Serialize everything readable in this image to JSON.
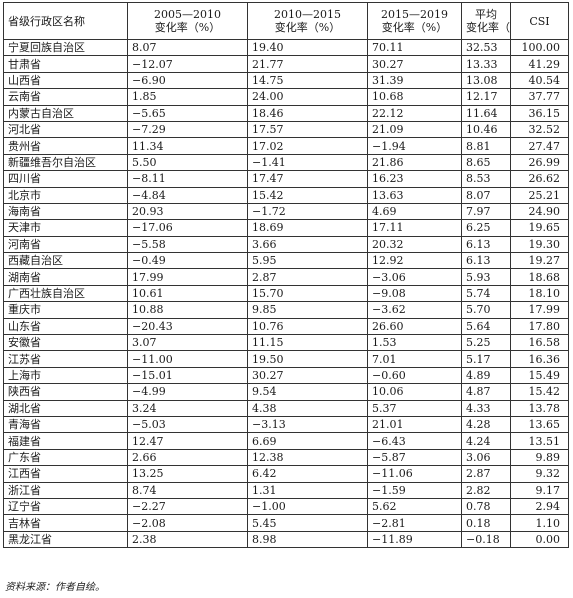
{
  "table": {
    "headers": {
      "region": "省级行政区名称",
      "p1_line1": "2005—2010",
      "p1_line2": "变化率（%）",
      "p2_line1": "2010—2015",
      "p2_line2": "变化率（%）",
      "p3_line1": "2015—2019",
      "p3_line2": "变化率（%）",
      "avg_line1": "平均",
      "avg_line2": "变化率（%）",
      "csi": "CSI"
    },
    "rows": [
      [
        "宁夏回族自治区",
        "8.07",
        "19.40",
        "70.11",
        "32.53",
        "100.00"
      ],
      [
        "甘肃省",
        "−12.07",
        "21.77",
        "30.27",
        "13.33",
        "41.29"
      ],
      [
        "山西省",
        "−6.90",
        "14.75",
        "31.39",
        "13.08",
        "40.54"
      ],
      [
        "云南省",
        "1.85",
        "24.00",
        "10.68",
        "12.17",
        "37.77"
      ],
      [
        "内蒙古自治区",
        "−5.65",
        "18.46",
        "22.12",
        "11.64",
        "36.15"
      ],
      [
        "河北省",
        "−7.29",
        "17.57",
        "21.09",
        "10.46",
        "32.52"
      ],
      [
        "贵州省",
        "11.34",
        "17.02",
        "−1.94",
        "8.81",
        "27.47"
      ],
      [
        "新疆维吾尔自治区",
        "5.50",
        "−1.41",
        "21.86",
        "8.65",
        "26.99"
      ],
      [
        "四川省",
        "−8.11",
        "17.47",
        "16.23",
        "8.53",
        "26.62"
      ],
      [
        "北京市",
        "−4.84",
        "15.42",
        "13.63",
        "8.07",
        "25.21"
      ],
      [
        "海南省",
        "20.93",
        "−1.72",
        "4.69",
        "7.97",
        "24.90"
      ],
      [
        "天津市",
        "−17.06",
        "18.69",
        "17.11",
        "6.25",
        "19.65"
      ],
      [
        "河南省",
        "−5.58",
        "3.66",
        "20.32",
        "6.13",
        "19.30"
      ],
      [
        "西藏自治区",
        "−0.49",
        "5.95",
        "12.92",
        "6.13",
        "19.27"
      ],
      [
        "湖南省",
        "17.99",
        "2.87",
        "−3.06",
        "5.93",
        "18.68"
      ],
      [
        "广西壮族自治区",
        "10.61",
        "15.70",
        "−9.08",
        "5.74",
        "18.10"
      ],
      [
        "重庆市",
        "10.88",
        "9.85",
        "−3.62",
        "5.70",
        "17.99"
      ],
      [
        "山东省",
        "−20.43",
        "10.76",
        "26.60",
        "5.64",
        "17.80"
      ],
      [
        "安徽省",
        "3.07",
        "11.15",
        "1.53",
        "5.25",
        "16.58"
      ],
      [
        "江苏省",
        "−11.00",
        "19.50",
        "7.01",
        "5.17",
        "16.36"
      ],
      [
        "上海市",
        "−15.01",
        "30.27",
        "−0.60",
        "4.89",
        "15.49"
      ],
      [
        "陕西省",
        "−4.99",
        "9.54",
        "10.06",
        "4.87",
        "15.42"
      ],
      [
        "湖北省",
        "3.24",
        "4.38",
        "5.37",
        "4.33",
        "13.78"
      ],
      [
        "青海省",
        "−5.03",
        "−3.13",
        "21.01",
        "4.28",
        "13.65"
      ],
      [
        "福建省",
        "12.47",
        "6.69",
        "−6.43",
        "4.24",
        "13.51"
      ],
      [
        "广东省",
        "2.66",
        "12.38",
        "−5.87",
        "3.06",
        "9.89"
      ],
      [
        "江西省",
        "13.25",
        "6.42",
        "−11.06",
        "2.87",
        "9.32"
      ],
      [
        "浙江省",
        "8.74",
        "1.31",
        "−1.59",
        "2.82",
        "9.17"
      ],
      [
        "辽宁省",
        "−2.27",
        "−1.00",
        "5.62",
        "0.78",
        "2.94"
      ],
      [
        "吉林省",
        "−2.08",
        "5.45",
        "−2.81",
        "0.18",
        "1.10"
      ],
      [
        "黑龙江省",
        "2.38",
        "8.98",
        "−11.89",
        "−0.18",
        "0.00"
      ]
    ]
  },
  "source_note": "资料来源：作者自绘。"
}
